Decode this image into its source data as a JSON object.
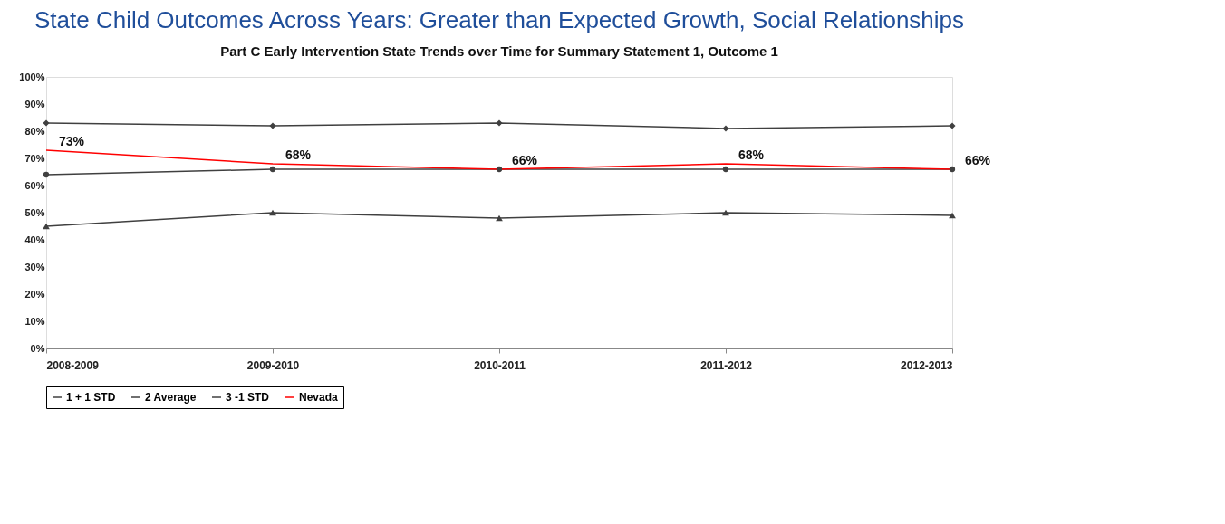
{
  "chart_data": {
    "type": "line",
    "title": "State Child Outcomes Across Years: Greater than Expected Growth, Social Relationships",
    "subtitle": "Part C Early Intervention State Trends over Time for Summary Statement 1, Outcome 1",
    "categories": [
      "2008-2009",
      "2009-2010",
      "2010-2011",
      "2011-2012",
      "2012-2013"
    ],
    "series": [
      {
        "name": "1 + 1 STD",
        "color": "#404040",
        "marker": "diamond",
        "values": [
          83,
          82,
          83,
          81,
          82
        ]
      },
      {
        "name": "2 Average",
        "color": "#404040",
        "marker": "circle",
        "values": [
          64,
          66,
          66,
          66,
          66
        ]
      },
      {
        "name": "3 -1 STD",
        "color": "#404040",
        "marker": "triangle",
        "values": [
          45,
          50,
          48,
          50,
          49
        ]
      },
      {
        "name": "Nevada",
        "color": "#ff0000",
        "marker": "none",
        "values": [
          73,
          68,
          66,
          68,
          66
        ],
        "value_labels": [
          "73%",
          "68%",
          "66%",
          "68%",
          "66%"
        ]
      }
    ],
    "ylim": [
      0,
      100
    ],
    "yticks": [
      {
        "value": 0,
        "label": "0%"
      },
      {
        "value": 10,
        "label": "10%"
      },
      {
        "value": 20,
        "label": "20%"
      },
      {
        "value": 30,
        "label": "30%"
      },
      {
        "value": 40,
        "label": "40%"
      },
      {
        "value": 50,
        "label": "50%"
      },
      {
        "value": 60,
        "label": "60%"
      },
      {
        "value": 70,
        "label": "70%"
      },
      {
        "value": 80,
        "label": "80%"
      },
      {
        "value": 90,
        "label": "90%"
      },
      {
        "value": 100,
        "label": "100%"
      }
    ],
    "grid": false,
    "legend": "bottom"
  }
}
